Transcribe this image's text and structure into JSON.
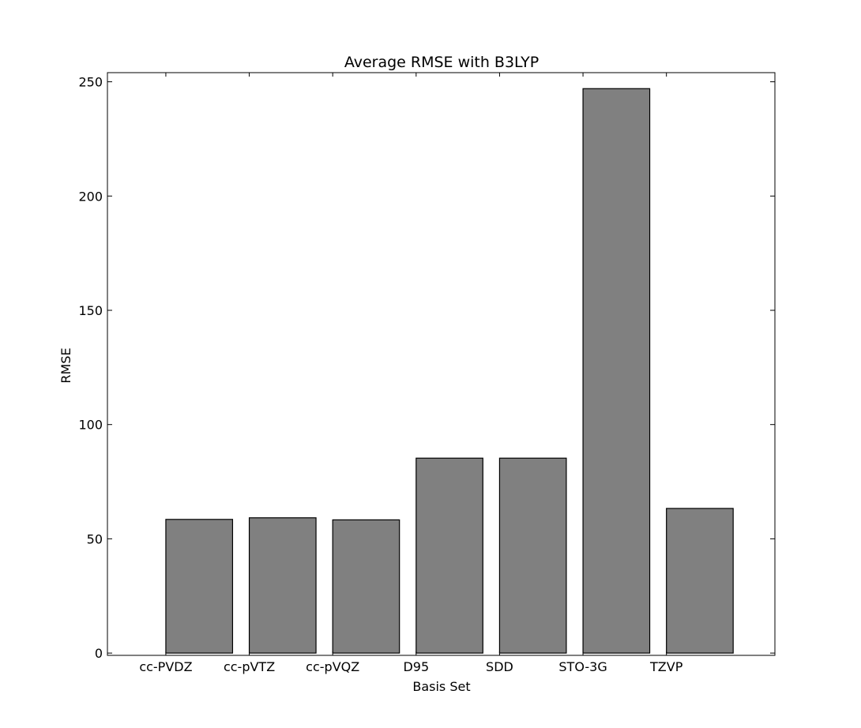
{
  "chart_data": {
    "type": "bar",
    "title": "Average RMSE with B3LYP",
    "xlabel": "Basis Set",
    "ylabel": "RMSE",
    "categories": [
      "cc-PVDZ",
      "cc-pVTZ",
      "cc-pVQZ",
      "D95",
      "SDD",
      "STO-3G",
      "TZVP"
    ],
    "values": [
      58.5,
      59.2,
      58.3,
      85.3,
      85.3,
      247.0,
      63.3
    ],
    "ylim": [
      -1,
      254
    ],
    "yticks": [
      0,
      50,
      100,
      150,
      200,
      250
    ],
    "grid": false,
    "legend": "none",
    "colors": {
      "bar_fill": "#808080",
      "bar_edge": "#000000",
      "axes": "#000000"
    }
  }
}
